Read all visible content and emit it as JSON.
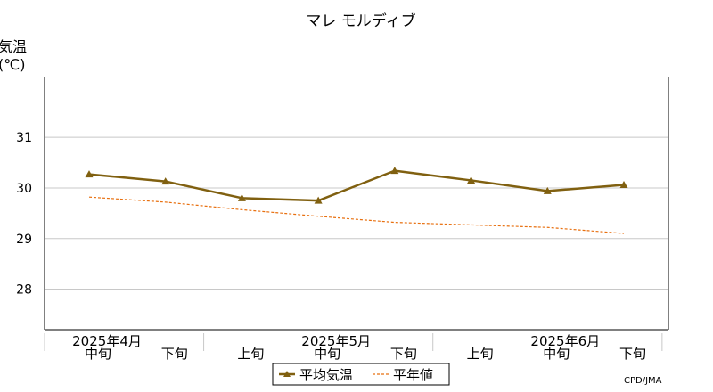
{
  "chart_data": {
    "type": "line",
    "title": "マレ モルディブ",
    "ylabel_line1": "気温",
    "ylabel_line2": "(℃)",
    "ylim": [
      27.2,
      32.2
    ],
    "yticks": [
      28,
      29,
      30,
      31
    ],
    "grid": true,
    "categories": [
      "2025年4月 中旬",
      "2025年4月 下旬",
      "2025年5月 上旬",
      "2025年5月 中旬",
      "2025年5月 下旬",
      "2025年6月 上旬",
      "2025年6月 中旬",
      "2025年6月 下旬"
    ],
    "x_tick_labels": [
      "中旬",
      "下旬",
      "上旬",
      "中旬",
      "下旬",
      "上旬",
      "中旬",
      "下旬"
    ],
    "x_month_labels": [
      {
        "label": "2025年4月",
        "index": 0
      },
      {
        "label": "2025年5月",
        "index": 3
      },
      {
        "label": "2025年6月",
        "index": 6
      }
    ],
    "series": [
      {
        "name": "平均気温",
        "color": "#806010",
        "style": "solid",
        "marker": "triangle",
        "values": [
          30.27,
          30.13,
          29.8,
          29.75,
          30.34,
          30.15,
          29.94,
          30.06
        ]
      },
      {
        "name": "平年値",
        "color": "#e87010",
        "style": "dashed",
        "marker": "none",
        "values": [
          29.82,
          29.72,
          29.57,
          29.44,
          29.32,
          29.27,
          29.22,
          29.1
        ]
      }
    ],
    "legend_position": "bottom-center",
    "source": "CPD/JMA"
  }
}
